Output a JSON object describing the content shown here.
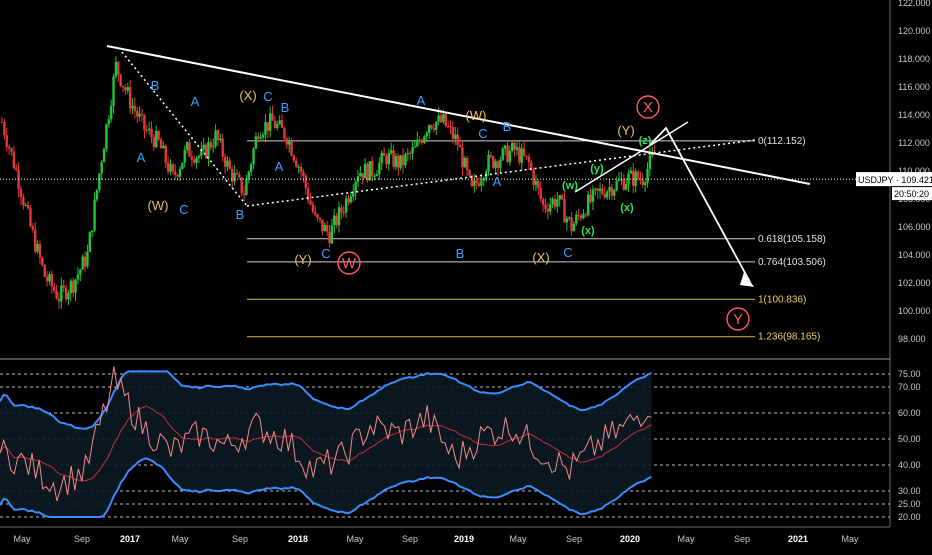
{
  "symbol": "USDJPY",
  "price_tag": "109.421",
  "time_tag": "20:50:20",
  "colors": {
    "up": "#22c43a",
    "down": "#e23a3a",
    "trend": "#ffffff",
    "wave_blue": "#3aa0ff",
    "wave_yellow": "#f0c060",
    "wave_green": "#30e060",
    "wave_red": "#ff5a6a",
    "fib_white": "#cfcfcf",
    "fib_yellow": "#d8b84a",
    "rsi": "#f08a8a",
    "bb": "#3a8cff",
    "ma": "#c03040"
  },
  "price_axis": [
    "122.000",
    "120.000",
    "118.000",
    "116.000",
    "114.000",
    "112.000",
    "110.000",
    "108.000",
    "106.000",
    "104.000",
    "102.000",
    "100.000",
    "98.000"
  ],
  "osc_axis": [
    "75.00",
    "70.00",
    "60.00",
    "50.00",
    "40.00",
    "30.00",
    "25.00",
    "20.00"
  ],
  "time_axis": [
    {
      "label": "May",
      "bold": false
    },
    {
      "label": "Sep",
      "bold": false
    },
    {
      "label": "2017",
      "bold": true
    },
    {
      "label": "May",
      "bold": false
    },
    {
      "label": "Sep",
      "bold": false
    },
    {
      "label": "2018",
      "bold": true
    },
    {
      "label": "May",
      "bold": false
    },
    {
      "label": "Sep",
      "bold": false
    },
    {
      "label": "2019",
      "bold": true
    },
    {
      "label": "May",
      "bold": false
    },
    {
      "label": "Sep",
      "bold": false
    },
    {
      "label": "2020",
      "bold": true
    },
    {
      "label": "May",
      "bold": false
    },
    {
      "label": "Sep",
      "bold": false
    },
    {
      "label": "2021",
      "bold": true
    },
    {
      "label": "May",
      "bold": false
    }
  ],
  "fib_levels": [
    {
      "label": "0(112.152)",
      "value": 112.152,
      "tone": "white"
    },
    {
      "label": "0.618(105.158)",
      "value": 105.158,
      "tone": "white"
    },
    {
      "label": "0.764(103.506)",
      "value": 103.506,
      "tone": "white"
    },
    {
      "label": "1(100.836)",
      "value": 100.836,
      "tone": "yellow"
    },
    {
      "label": "1.236(98.165)",
      "value": 98.165,
      "tone": "yellow"
    }
  ],
  "wave_labels": [
    {
      "text": "B",
      "tone": "blue"
    },
    {
      "text": "A",
      "tone": "blue"
    },
    {
      "text": "A",
      "tone": "blue"
    },
    {
      "text": "(W)",
      "tone": "yellow"
    },
    {
      "text": "C",
      "tone": "blue"
    },
    {
      "text": "(X)",
      "tone": "yellow"
    },
    {
      "text": "C",
      "tone": "blue"
    },
    {
      "text": "B",
      "tone": "blue"
    },
    {
      "text": "A",
      "tone": "blue"
    },
    {
      "text": "B",
      "tone": "blue"
    },
    {
      "text": "C",
      "tone": "blue"
    },
    {
      "text": "(Y)",
      "tone": "yellow"
    },
    {
      "text": "W",
      "tone": "red"
    },
    {
      "text": "A",
      "tone": "blue"
    },
    {
      "text": "(W)",
      "tone": "yellow"
    },
    {
      "text": "C",
      "tone": "blue"
    },
    {
      "text": "B",
      "tone": "blue"
    },
    {
      "text": "A",
      "tone": "blue"
    },
    {
      "text": "B",
      "tone": "blue"
    },
    {
      "text": "(X)",
      "tone": "yellow"
    },
    {
      "text": "C",
      "tone": "blue"
    },
    {
      "text": "(w)",
      "tone": "green"
    },
    {
      "text": "(y)",
      "tone": "green"
    },
    {
      "text": "(x)",
      "tone": "green"
    },
    {
      "text": "(x)",
      "tone": "green"
    },
    {
      "text": "(z)",
      "tone": "green"
    },
    {
      "text": "(Y)",
      "tone": "yellow"
    },
    {
      "text": "X",
      "tone": "red"
    },
    {
      "text": "Y",
      "tone": "red"
    }
  ],
  "chart_data": [
    {
      "type": "line",
      "title": "",
      "series": [
        {
          "name": "USDJPY",
          "x": [
            "2016-04",
            "2016-05",
            "2016-06",
            "2016-07",
            "2016-08",
            "2016-09",
            "2016-10",
            "2016-11",
            "2016-12",
            "2017-01",
            "2017-02",
            "2017-03",
            "2017-04",
            "2017-05",
            "2017-06",
            "2017-07",
            "2017-08",
            "2017-09",
            "2017-10",
            "2017-11",
            "2017-12",
            "2018-01",
            "2018-02",
            "2018-03",
            "2018-04",
            "2018-05",
            "2018-06",
            "2018-07",
            "2018-08",
            "2018-09",
            "2018-10",
            "2018-11",
            "2018-12",
            "2019-01",
            "2019-02",
            "2019-03",
            "2019-04",
            "2019-05",
            "2019-06",
            "2019-07",
            "2019-08",
            "2019-09",
            "2019-10",
            "2019-11",
            "2019-12",
            "2020-01",
            "2020-02"
          ],
          "values": [
            113.5,
            110.0,
            106.0,
            102.5,
            101.0,
            102.0,
            104.0,
            111.0,
            117.5,
            115.0,
            113.0,
            112.0,
            109.5,
            111.5,
            111.0,
            112.5,
            110.0,
            108.5,
            113.0,
            113.5,
            112.5,
            110.0,
            106.5,
            105.5,
            107.5,
            110.0,
            110.0,
            111.0,
            110.5,
            111.5,
            113.5,
            113.5,
            112.0,
            108.5,
            110.5,
            111.0,
            111.5,
            110.5,
            107.5,
            108.0,
            106.0,
            107.5,
            108.5,
            109.0,
            109.5,
            109.5,
            111.5
          ]
        }
      ],
      "ylim": [
        97,
        122
      ],
      "xlabel": "",
      "ylabel": ""
    },
    {
      "type": "line",
      "title": "",
      "series": [
        {
          "name": "",
          "x": [
            "2016-04",
            "2016-06",
            "2016-08",
            "2016-10",
            "2016-12",
            "2017-02",
            "2017-04",
            "2017-06",
            "2017-08",
            "2017-10",
            "2017-12",
            "2018-02",
            "2018-04",
            "2018-06",
            "2018-08",
            "2018-10",
            "2018-12",
            "2019-02",
            "2019-04",
            "2019-06",
            "2019-08",
            "2019-10",
            "2019-12",
            "2020-02"
          ],
          "values": [
            45,
            40,
            32,
            38,
            72,
            55,
            45,
            52,
            47,
            55,
            50,
            38,
            43,
            55,
            52,
            58,
            42,
            52,
            55,
            45,
            38,
            48,
            55,
            65
          ]
        }
      ],
      "ylim": [
        19,
        77
      ]
    }
  ]
}
